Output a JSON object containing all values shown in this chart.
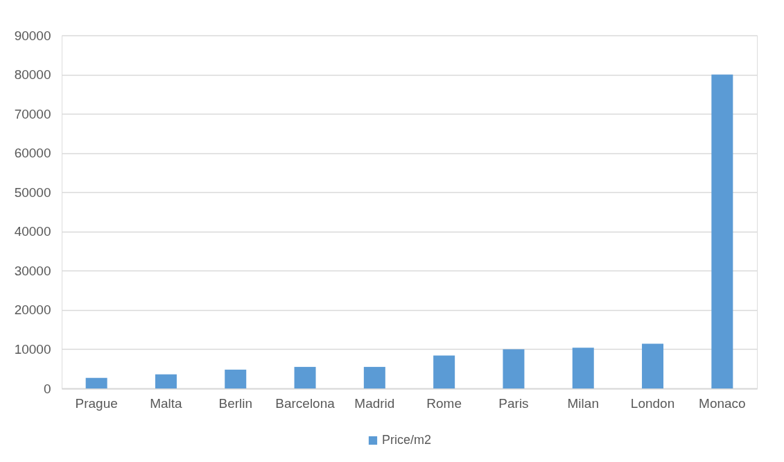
{
  "chart_data": {
    "type": "bar",
    "categories": [
      "Prague",
      "Malta",
      "Berlin",
      "Barcelona",
      "Madrid",
      "Rome",
      "Paris",
      "Milan",
      "London",
      "Monaco"
    ],
    "series": [
      {
        "name": "Price/m2",
        "color": "#5b9bd5",
        "values": [
          2700,
          3600,
          4800,
          5500,
          5500,
          8400,
          10000,
          10400,
          11400,
          80000
        ]
      }
    ],
    "ylim": [
      0,
      90000
    ],
    "yticks": [
      0,
      10000,
      20000,
      30000,
      40000,
      50000,
      60000,
      70000,
      80000,
      90000
    ],
    "grid": "y",
    "legend": "bottom"
  }
}
